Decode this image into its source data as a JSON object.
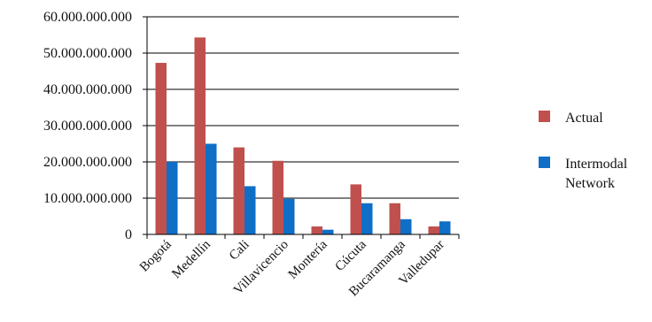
{
  "chart_data": {
    "type": "bar",
    "title": "",
    "xlabel": "",
    "ylabel": "",
    "categories": [
      "Bogotá",
      "Medellín",
      "Cali",
      "Villavicencio",
      "Montería",
      "Cúcuta",
      "Bucaramanga",
      "Valledupar"
    ],
    "series": [
      {
        "name": "Actual",
        "color": "#c0504d",
        "values": [
          47300000000,
          54300000000,
          24000000000,
          20300000000,
          2200000000,
          13800000000,
          8600000000,
          2200000000
        ]
      },
      {
        "name_lines": [
          "Intermodal",
          "Network"
        ],
        "color": "#0f6fc6",
        "values": [
          20000000000,
          25000000000,
          13300000000,
          9800000000,
          1300000000,
          8600000000,
          4200000000,
          3600000000
        ]
      }
    ],
    "ylim": [
      0,
      60000000000
    ],
    "yticks": [
      0,
      10000000000,
      20000000000,
      30000000000,
      40000000000,
      50000000000,
      60000000000
    ],
    "ytick_labels": [
      "0",
      "10.000.000.000",
      "20.000.000.000",
      "30.000.000.000",
      "40.000.000.000",
      "50.000.000.000",
      "60.000.000.000"
    ],
    "grid": "horizontal",
    "legend": "right"
  }
}
